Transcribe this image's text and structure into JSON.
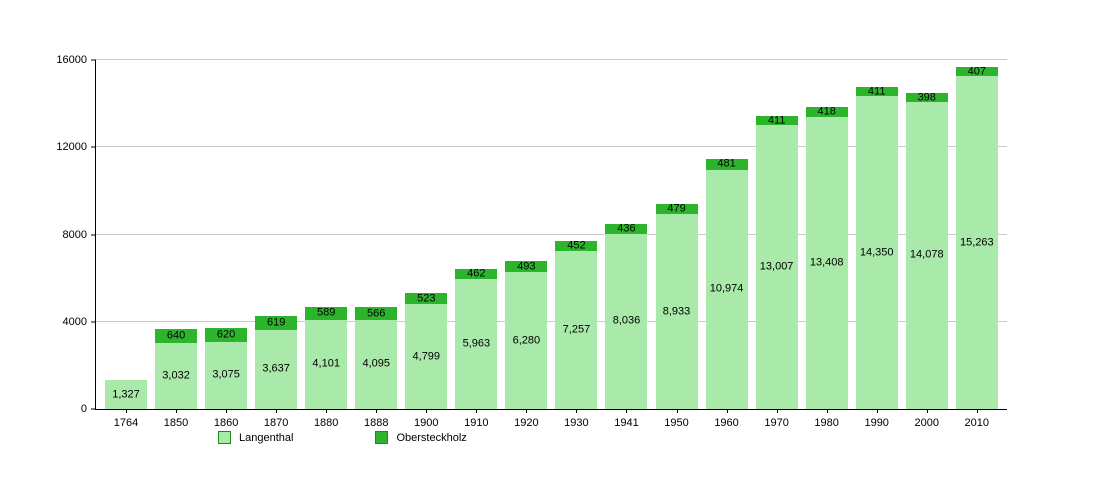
{
  "chart_data": {
    "type": "bar",
    "stacked": true,
    "title": "",
    "xlabel": "",
    "ylabel": "",
    "categories": [
      "1764",
      "1850",
      "1860",
      "1870",
      "1880",
      "1888",
      "1900",
      "1910",
      "1920",
      "1930",
      "1941",
      "1950",
      "1960",
      "1970",
      "1980",
      "1990",
      "2000",
      "2010"
    ],
    "series": [
      {
        "name": "Langenthal",
        "color": "#a9e9a9",
        "values": [
          1327,
          3032,
          3075,
          3637,
          4101,
          4095,
          4799,
          5963,
          6280,
          7257,
          8036,
          8933,
          10974,
          13007,
          13408,
          14350,
          14078,
          15263
        ],
        "labels": [
          "1,327",
          "3,032",
          "3,075",
          "3,637",
          "4,101",
          "4,095",
          "4,799",
          "5,963",
          "6,280",
          "7,257",
          "8,036",
          "8,933",
          "10,974",
          "13,007",
          "13,408",
          "14,350",
          "14,078",
          "15,263"
        ]
      },
      {
        "name": "Obersteckholz",
        "color": "#2db42d",
        "values": [
          0,
          640,
          620,
          619,
          589,
          566,
          523,
          462,
          493,
          452,
          436,
          479,
          481,
          411,
          418,
          411,
          398,
          407
        ],
        "labels": [
          "",
          "640",
          "620",
          "619",
          "589",
          "566",
          "523",
          "462",
          "493",
          "452",
          "436",
          "479",
          "481",
          "411",
          "418",
          "411",
          "398",
          "407"
        ]
      }
    ],
    "ylim": [
      0,
      16000
    ],
    "yticks": [
      0,
      4000,
      8000,
      12000,
      16000
    ],
    "ytick_labels": [
      "0",
      "4000",
      "8000",
      "12000",
      "16000"
    ],
    "grid": true,
    "legend_position": "bottom"
  }
}
